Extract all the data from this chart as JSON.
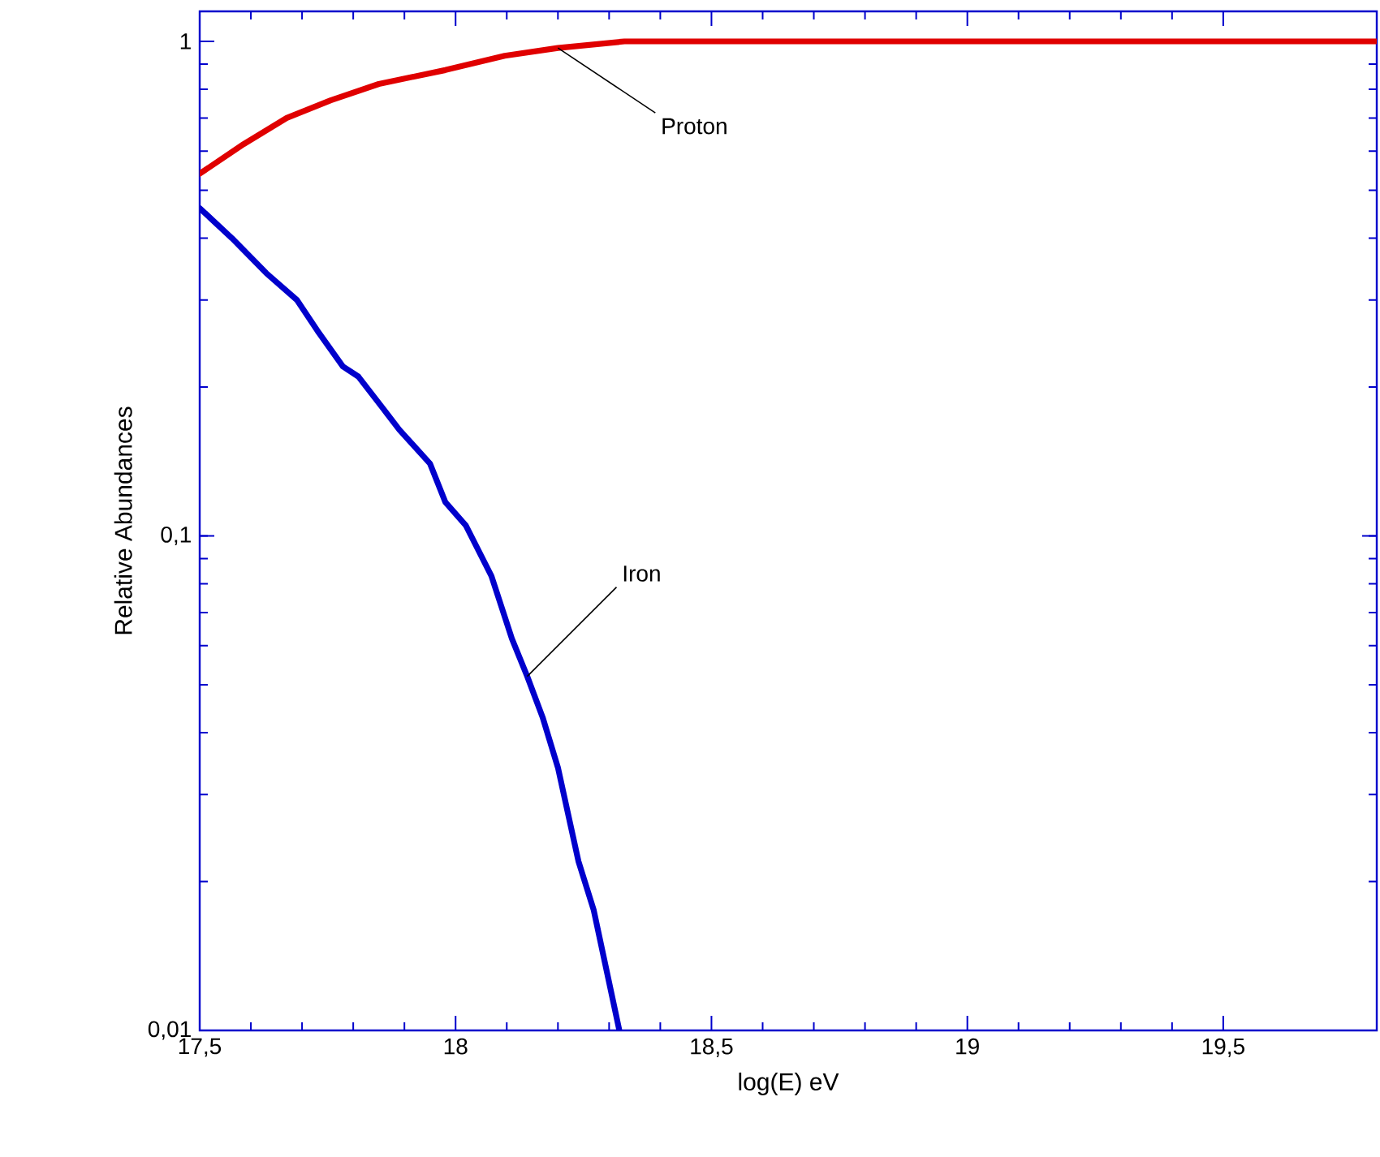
{
  "chart_data": {
    "type": "line",
    "xlabel": "log(E) eV",
    "ylabel": "Relative Abundances",
    "log": "y",
    "xlim": [
      17.5,
      19.8
    ],
    "ylim": [
      0.01,
      1.15
    ],
    "xticks": [
      {
        "value": 17.5,
        "label": "17,5"
      },
      18,
      {
        "value": 18.5,
        "label": "18,5"
      },
      19,
      {
        "value": 19.5,
        "label": "19,5"
      }
    ],
    "yticks": [
      {
        "value": 0.01,
        "label": "0,01"
      },
      {
        "value": 0.1,
        "label": "0,1"
      },
      1
    ],
    "series": [
      {
        "color": "#e00000",
        "x": [
          17.5,
          17.586,
          17.67,
          17.756,
          17.85,
          17.98,
          18.096,
          18.2,
          18.33,
          19.8
        ],
        "values": [
          0.54,
          0.62,
          0.7,
          0.76,
          0.82,
          0.875,
          0.935,
          0.97,
          1.0,
          1.0
        ]
      },
      {
        "color": "#0000cc",
        "x": [
          17.5,
          17.563,
          17.63,
          17.69,
          17.73,
          17.78,
          17.81,
          17.86,
          17.89,
          17.95,
          17.98,
          18.02,
          18.07,
          18.11,
          18.14,
          18.17,
          18.2,
          18.24,
          18.27,
          18.32
        ],
        "values": [
          0.46,
          0.4,
          0.34,
          0.3,
          0.26,
          0.22,
          0.21,
          0.18,
          0.164,
          0.14,
          0.117,
          0.105,
          0.083,
          0.062,
          0.052,
          0.043,
          0.034,
          0.022,
          0.0175,
          0.01
        ]
      }
    ],
    "annotations": [
      {
        "text": "Proton",
        "x": 18.2,
        "y": 0.97
      },
      {
        "text": "Iron",
        "x": 18.14,
        "y": 0.052
      }
    ],
    "grid": false,
    "marker": "none",
    "line_style": "solid"
  }
}
